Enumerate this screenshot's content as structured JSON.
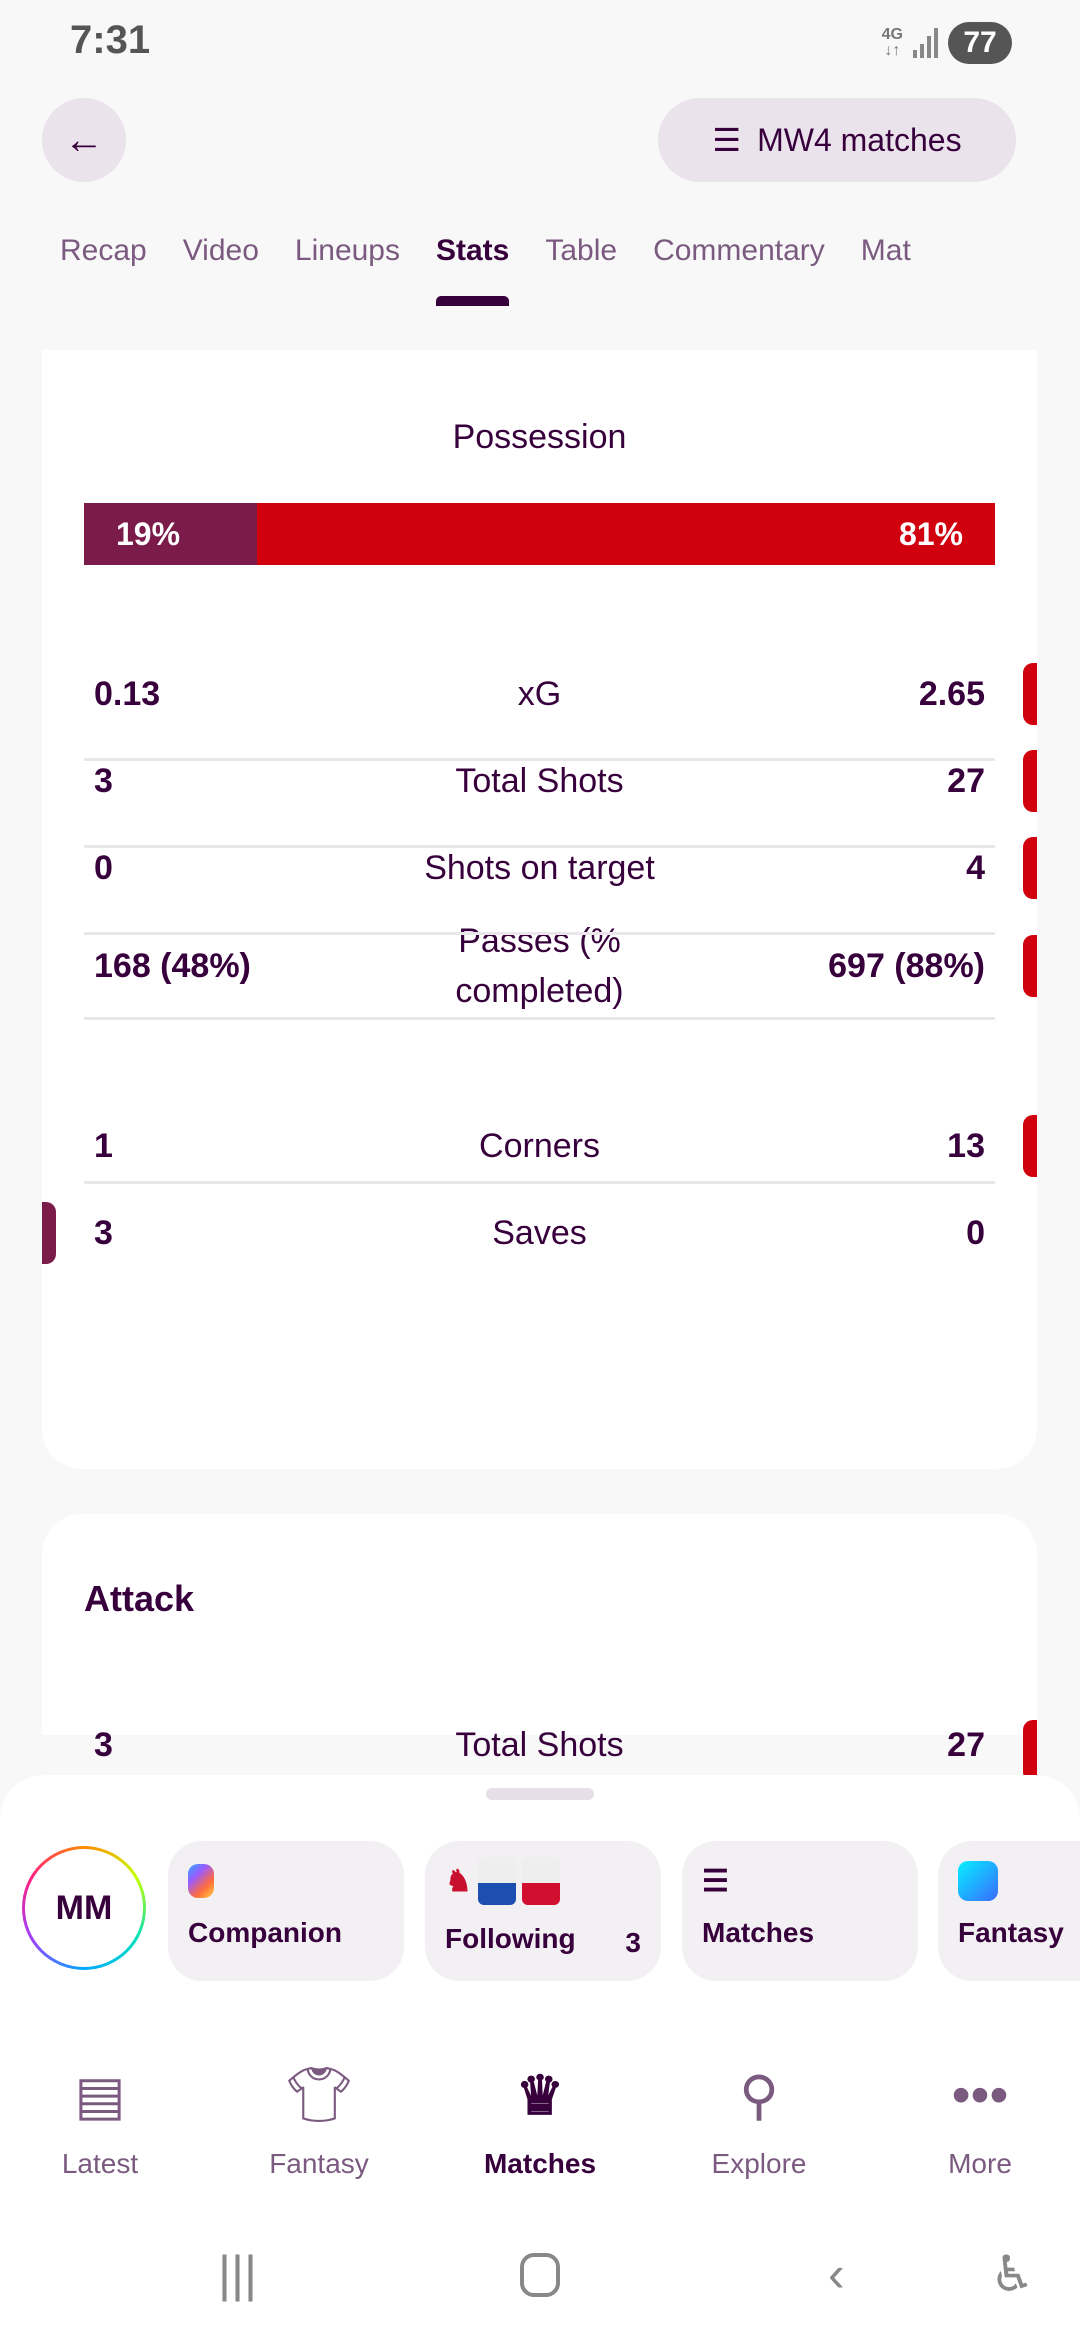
{
  "status": {
    "time": "7:31",
    "network": "4G",
    "battery": "77"
  },
  "header": {
    "mw_label": "MW4 matches"
  },
  "tabs": [
    {
      "label": "Recap"
    },
    {
      "label": "Video"
    },
    {
      "label": "Lineups"
    },
    {
      "label": "Stats",
      "active": true
    },
    {
      "label": "Table"
    },
    {
      "label": "Commentary"
    },
    {
      "label": "Mat"
    }
  ],
  "possession": {
    "title": "Possession",
    "home": "19%",
    "away": "81%",
    "home_fraction": 0.19
  },
  "stats": [
    {
      "home": "0.13",
      "label": "xG",
      "away": "2.65",
      "leader": "away"
    },
    {
      "home": "3",
      "label": "Total Shots",
      "away": "27",
      "leader": "away"
    },
    {
      "home": "0",
      "label": "Shots on target",
      "away": "4",
      "leader": "away"
    },
    {
      "home": "168 (48%)",
      "label": "Passes (% completed)",
      "away": "697 (88%)",
      "leader": "away"
    },
    {
      "home": "1",
      "label": "Corners",
      "away": "13",
      "leader": "away"
    },
    {
      "home": "3",
      "label": "Saves",
      "away": "0",
      "leader": "home"
    }
  ],
  "attack": {
    "title": "Attack",
    "row": {
      "home": "3",
      "label": "Total Shots",
      "away": "27"
    }
  },
  "colors": {
    "home": "#7a1b4a",
    "away": "#d0000f",
    "primary": "#37003c"
  },
  "sheet": {
    "avatar": "MM",
    "chips": [
      {
        "label": "Companion"
      },
      {
        "label": "Following",
        "count": "3"
      },
      {
        "label": "Matches"
      },
      {
        "label": "Fantasy"
      }
    ]
  },
  "bottom_nav": [
    {
      "label": "Latest",
      "icon": "news-icon"
    },
    {
      "label": "Fantasy",
      "icon": "shirt-icon"
    },
    {
      "label": "Matches",
      "icon": "lion-icon",
      "active": true
    },
    {
      "label": "Explore",
      "icon": "search-icon"
    },
    {
      "label": "More",
      "icon": "more-icon"
    }
  ]
}
